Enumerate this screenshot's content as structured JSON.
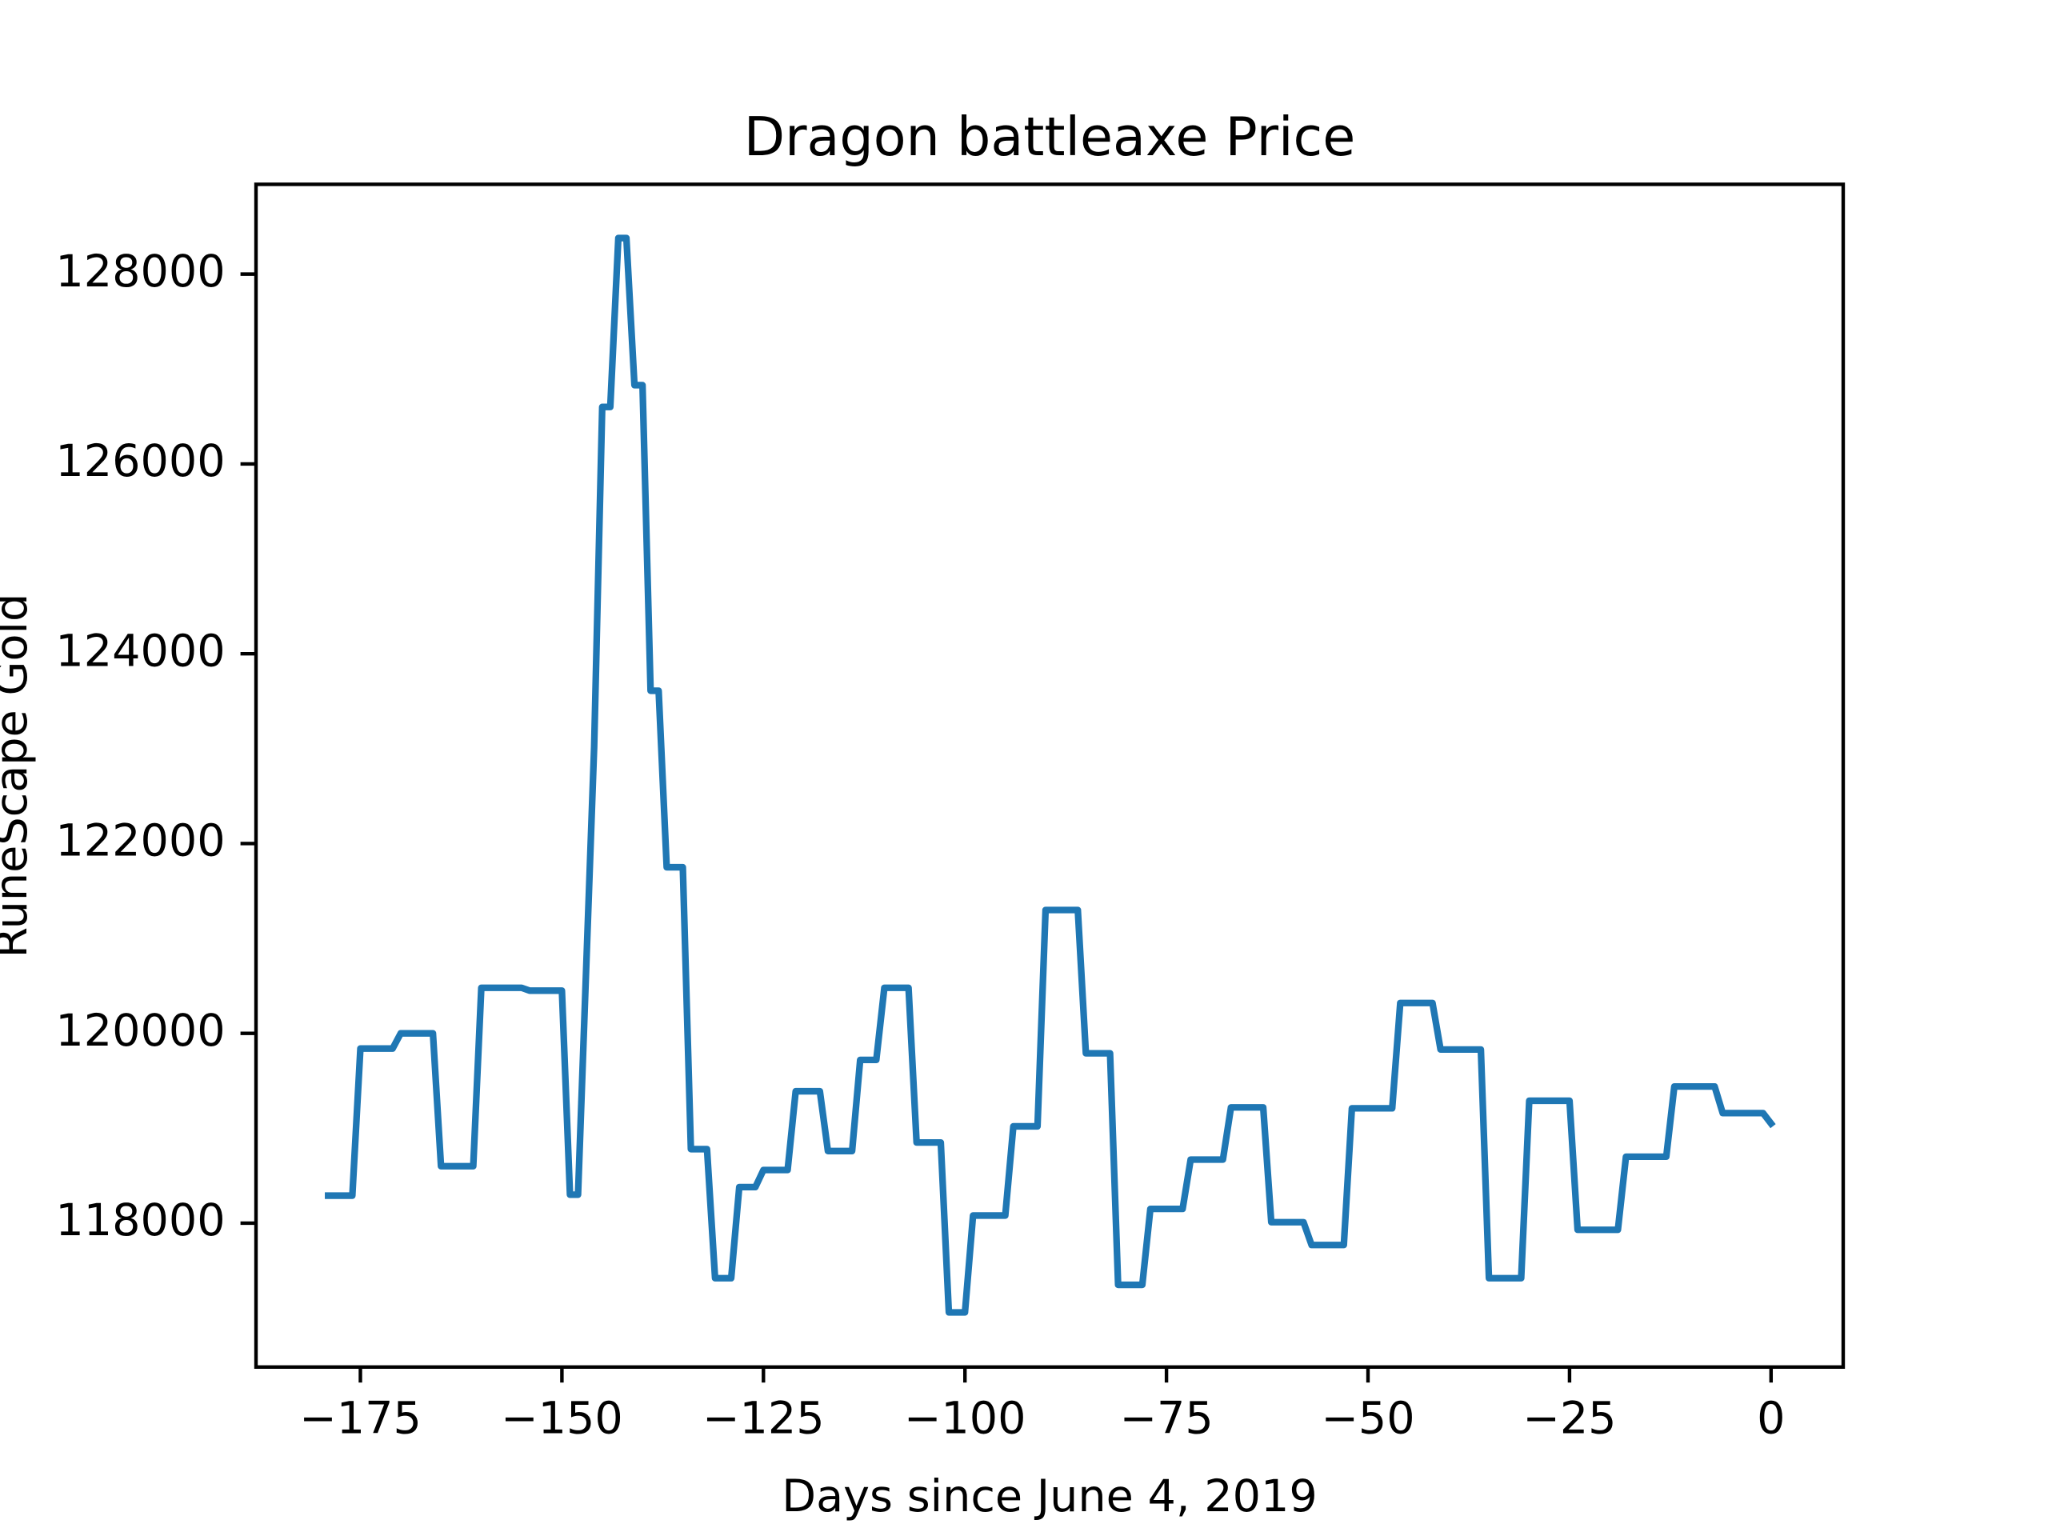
{
  "chart_data": {
    "type": "line",
    "title": "Dragon battleaxe Price",
    "x_label": "Days since June 4, 2019",
    "y_label": "RuneScape Gold",
    "x": [
      -179,
      -176,
      -175,
      -171,
      -170,
      -166,
      -165,
      -161,
      -160,
      -155,
      -154,
      -150,
      -149,
      -148,
      -146,
      -145,
      -144,
      -143,
      -142,
      -141,
      -140,
      -139,
      -138,
      -137,
      -135,
      -134,
      -132,
      -131,
      -129,
      -128,
      -126,
      -125,
      -122,
      -121,
      -118,
      -117,
      -114,
      -113,
      -111,
      -110,
      -107,
      -106,
      -103,
      -102,
      -100,
      -99,
      -95,
      -94,
      -91,
      -90,
      -86,
      -85,
      -82,
      -81,
      -78,
      -77,
      -73,
      -72,
      -68,
      -67,
      -63,
      -62,
      -58,
      -57,
      -53,
      -52,
      -47,
      -46,
      -42,
      -41,
      -36,
      -35,
      -31,
      -30,
      -25,
      -24,
      -19,
      -18,
      -13,
      -12,
      -7,
      -6,
      -1,
      0
    ],
    "series": [
      {
        "name": "Dragon battleaxe",
        "color": "#1f77b4",
        "values": [
          118290,
          118290,
          119840,
          119840,
          120000,
          120000,
          118600,
          118600,
          120480,
          120480,
          120450,
          120450,
          118300,
          118300,
          123020,
          126600,
          126600,
          128380,
          128380,
          126830,
          126830,
          123610,
          123610,
          121750,
          121750,
          118780,
          118780,
          117420,
          117420,
          118380,
          118380,
          118560,
          118560,
          119390,
          119390,
          118760,
          118760,
          119720,
          119720,
          120480,
          120480,
          118850,
          118850,
          117060,
          117060,
          118080,
          118080,
          119020,
          119020,
          121300,
          121300,
          119790,
          119790,
          117350,
          117350,
          118150,
          118150,
          118670,
          118670,
          119220,
          119220,
          118010,
          118010,
          117770,
          117770,
          119210,
          119210,
          120320,
          120320,
          119830,
          119830,
          117420,
          117420,
          119290,
          119290,
          117930,
          117930,
          118700,
          118700,
          119440,
          119440,
          119160,
          119160,
          119050
        ]
      }
    ],
    "xlim": [
      -187.95,
      8.95
    ],
    "ylim": [
      116484,
      128946
    ],
    "xticks": [
      {
        "value": -175,
        "label": "−175"
      },
      {
        "value": -150,
        "label": "−150"
      },
      {
        "value": -125,
        "label": "−125"
      },
      {
        "value": -100,
        "label": "−100"
      },
      {
        "value": -75,
        "label": "−75"
      },
      {
        "value": -50,
        "label": "−50"
      },
      {
        "value": -25,
        "label": "−25"
      },
      0
    ],
    "yticks": [
      118000,
      120000,
      122000,
      124000,
      126000,
      128000
    ],
    "grid": false
  }
}
